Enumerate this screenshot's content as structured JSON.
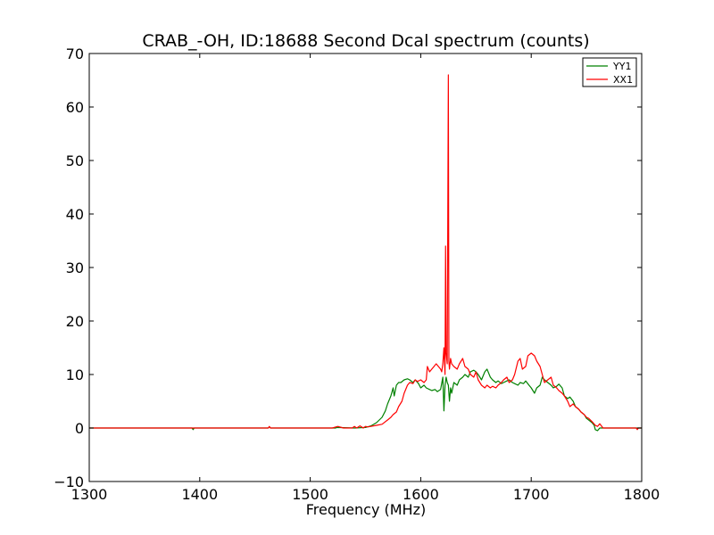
{
  "chart_data": {
    "type": "line",
    "title": "CRAB_-OH, ID:18688 Second Dcal spectrum (counts)",
    "xlabel": "Frequency (MHz)",
    "ylabel": "",
    "xlim": [
      1300,
      1800
    ],
    "ylim": [
      -10,
      70
    ],
    "xticks": [
      1300,
      1400,
      1500,
      1600,
      1700,
      1800
    ],
    "yticks": [
      -10,
      0,
      10,
      20,
      30,
      40,
      50,
      60,
      70
    ],
    "grid": false,
    "legend_position": "top-right",
    "series": [
      {
        "name": "YY1",
        "color": "#008000",
        "x": [
          1300,
          1350,
          1393,
          1394,
          1395,
          1450,
          1462,
          1463,
          1464,
          1500,
          1523,
          1524,
          1540,
          1550,
          1555,
          1560,
          1565,
          1568,
          1570,
          1573,
          1575,
          1576,
          1578,
          1580,
          1582,
          1585,
          1588,
          1590,
          1593,
          1595,
          1598,
          1600,
          1603,
          1605,
          1608,
          1610,
          1613,
          1615,
          1618,
          1620,
          1621,
          1622,
          1623,
          1624,
          1625,
          1626,
          1627,
          1628,
          1630,
          1633,
          1635,
          1638,
          1640,
          1643,
          1645,
          1648,
          1650,
          1652,
          1655,
          1658,
          1660,
          1663,
          1665,
          1668,
          1670,
          1673,
          1675,
          1678,
          1680,
          1683,
          1685,
          1688,
          1690,
          1693,
          1695,
          1698,
          1700,
          1703,
          1705,
          1708,
          1710,
          1712,
          1715,
          1718,
          1720,
          1723,
          1725,
          1728,
          1730,
          1733,
          1735,
          1738,
          1740,
          1743,
          1745,
          1748,
          1750,
          1752,
          1755,
          1757,
          1758,
          1760,
          1762,
          1765,
          1770,
          1780,
          1790,
          1800
        ],
        "values": [
          0,
          0,
          0,
          -0.3,
          0,
          0,
          0,
          0.2,
          0,
          0,
          0,
          0.1,
          0,
          0.1,
          0.4,
          1.0,
          2.0,
          3.2,
          4.5,
          6.0,
          7.5,
          6.0,
          8.0,
          8.5,
          8.5,
          9.0,
          9.2,
          9.0,
          8.5,
          9.0,
          8.3,
          7.5,
          8.0,
          7.5,
          7.2,
          7.0,
          7.2,
          6.8,
          7.2,
          9.5,
          3.2,
          8.0,
          9.5,
          8.5,
          8.0,
          5.0,
          7.5,
          6.5,
          8.5,
          8.0,
          9.0,
          9.5,
          10.0,
          9.5,
          10.5,
          10.8,
          10.5,
          10.0,
          9.0,
          10.5,
          11.0,
          9.5,
          9.0,
          8.5,
          8.8,
          8.3,
          8.5,
          8.8,
          9.0,
          8.5,
          8.3,
          8.0,
          8.5,
          8.3,
          8.8,
          8.0,
          7.5,
          6.5,
          7.5,
          8.0,
          9.5,
          9.0,
          8.5,
          8.0,
          7.5,
          7.8,
          8.2,
          7.5,
          6.0,
          5.5,
          5.8,
          5.0,
          4.0,
          3.5,
          3.0,
          2.5,
          1.8,
          1.5,
          1.0,
          0.5,
          -0.3,
          -0.5,
          0,
          0,
          0,
          0,
          0,
          0
        ]
      },
      {
        "name": "XX1",
        "color": "#ff0000",
        "x": [
          1300,
          1400,
          1462,
          1463,
          1464,
          1500,
          1520,
          1525,
          1530,
          1538,
          1540,
          1542,
          1545,
          1548,
          1550,
          1552,
          1555,
          1560,
          1565,
          1570,
          1573,
          1575,
          1578,
          1580,
          1583,
          1585,
          1588,
          1590,
          1593,
          1595,
          1597,
          1600,
          1603,
          1605,
          1606,
          1608,
          1610,
          1612,
          1614,
          1616,
          1618,
          1619,
          1620,
          1621,
          1622,
          1622.5,
          1623,
          1624,
          1625,
          1625.5,
          1626,
          1627,
          1628,
          1630,
          1633,
          1635,
          1638,
          1640,
          1643,
          1645,
          1648,
          1650,
          1652,
          1655,
          1658,
          1660,
          1663,
          1665,
          1668,
          1670,
          1673,
          1675,
          1678,
          1680,
          1683,
          1685,
          1688,
          1690,
          1692,
          1695,
          1697,
          1700,
          1703,
          1705,
          1708,
          1710,
          1712,
          1715,
          1718,
          1720,
          1723,
          1725,
          1728,
          1730,
          1733,
          1735,
          1738,
          1740,
          1743,
          1745,
          1748,
          1750,
          1752,
          1755,
          1758,
          1760,
          1762,
          1765,
          1770,
          1780,
          1790,
          1795,
          1796,
          1797,
          1800
        ],
        "values": [
          0,
          0,
          0,
          0.3,
          0,
          0,
          0,
          0.3,
          0,
          0,
          0.3,
          0,
          0.4,
          0,
          0.3,
          0.2,
          0.3,
          0.5,
          0.7,
          1.5,
          2.0,
          2.5,
          3.0,
          4.0,
          5.0,
          6.5,
          8.0,
          8.5,
          8.3,
          9.0,
          8.7,
          9.0,
          8.5,
          9.0,
          11.5,
          10.5,
          11.0,
          11.5,
          12.0,
          11.5,
          11.0,
          10.5,
          12.0,
          15.0,
          10.0,
          34.0,
          14.0,
          12.0,
          66.0,
          12.5,
          11.0,
          13.0,
          12.0,
          11.5,
          11.0,
          12.0,
          13.0,
          11.5,
          11.0,
          10.0,
          9.5,
          10.5,
          9.0,
          8.0,
          7.5,
          8.0,
          7.5,
          7.8,
          7.5,
          8.0,
          8.5,
          9.0,
          9.5,
          8.5,
          9.0,
          10.0,
          12.5,
          13.0,
          11.0,
          11.5,
          13.5,
          14.0,
          13.5,
          12.5,
          11.5,
          10.0,
          8.5,
          9.0,
          9.5,
          8.0,
          7.5,
          7.0,
          6.5,
          6.0,
          5.0,
          4.0,
          4.5,
          4.0,
          3.5,
          3.0,
          2.5,
          2.0,
          1.8,
          1.2,
          0.5,
          0.3,
          0.8,
          0,
          0,
          0,
          0,
          0,
          -0.3,
          0,
          0
        ]
      }
    ]
  }
}
